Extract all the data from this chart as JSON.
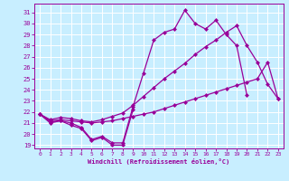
{
  "line_color": "#990099",
  "bg_color": "#c8eeff",
  "grid_color": "#aaddee",
  "xlabel": "Windchill (Refroidissement éolien,°C)",
  "lines": [
    [
      21.8,
      21.0,
      21.2,
      20.8,
      20.5,
      19.4,
      19.7,
      19.0,
      19.0,
      22.2,
      null,
      null,
      null,
      null,
      null,
      null,
      null,
      null,
      null,
      null,
      null,
      null,
      null,
      null
    ],
    [
      21.8,
      21.2,
      21.3,
      21.2,
      21.1,
      21.0,
      21.1,
      21.2,
      21.4,
      21.6,
      21.8,
      22.0,
      22.3,
      22.6,
      22.9,
      23.2,
      23.5,
      23.8,
      24.1,
      24.4,
      24.7,
      25.0,
      26.5,
      23.2
    ],
    [
      21.8,
      21.3,
      21.5,
      21.4,
      21.2,
      21.1,
      21.3,
      21.6,
      21.9,
      22.6,
      23.4,
      24.2,
      25.0,
      25.7,
      26.4,
      27.2,
      27.9,
      28.5,
      29.2,
      29.8,
      28.0,
      26.5,
      24.5,
      23.2
    ],
    [
      21.8,
      21.1,
      21.2,
      21.0,
      20.6,
      19.5,
      19.8,
      19.2,
      19.2,
      22.5,
      25.5,
      28.5,
      29.2,
      29.5,
      31.2,
      30.0,
      29.5,
      30.3,
      29.0,
      28.0,
      23.5,
      null,
      null,
      null
    ]
  ],
  "ylim": [
    18.7,
    31.8
  ],
  "xlim": [
    -0.5,
    23.5
  ],
  "yticks": [
    19,
    20,
    21,
    22,
    23,
    24,
    25,
    26,
    27,
    28,
    29,
    30,
    31
  ],
  "xticks": [
    0,
    1,
    2,
    3,
    4,
    5,
    6,
    7,
    8,
    9,
    10,
    11,
    12,
    13,
    14,
    15,
    16,
    17,
    18,
    19,
    20,
    21,
    22,
    23
  ],
  "marker": "D",
  "markersize": 2,
  "linewidth": 0.9
}
